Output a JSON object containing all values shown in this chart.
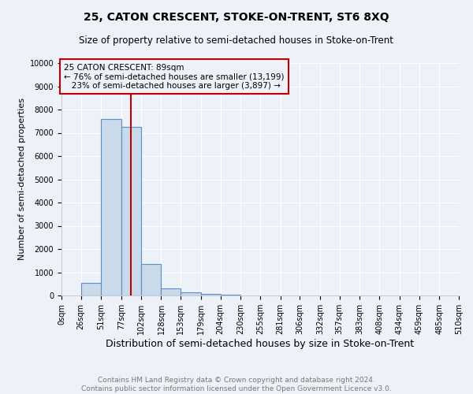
{
  "title": "25, CATON CRESCENT, STOKE-ON-TRENT, ST6 8XQ",
  "subtitle": "Size of property relative to semi-detached houses in Stoke-on-Trent",
  "xlabel": "Distribution of semi-detached houses by size in Stoke-on-Trent",
  "ylabel": "Number of semi-detached properties",
  "bin_edges": [
    0,
    25,
    51,
    77,
    102,
    128,
    153,
    179,
    204,
    230,
    255,
    281,
    306,
    332,
    357,
    383,
    408,
    434,
    459,
    485,
    510
  ],
  "bar_heights": [
    0,
    550,
    7600,
    7250,
    1350,
    310,
    135,
    80,
    50,
    0,
    0,
    0,
    0,
    0,
    0,
    0,
    0,
    0,
    0,
    0
  ],
  "bar_color": "#c9daea",
  "bar_edge_color": "#5b8fc9",
  "property_size": 89,
  "property_line_color": "#c00000",
  "annotation_line1": "25 CATON CRESCENT: 89sqm",
  "annotation_line2": "← 76% of semi-detached houses are smaller (13,199)",
  "annotation_line3": "   23% of semi-detached houses are larger (3,897) →",
  "annotation_box_color": "#c00000",
  "ylim": [
    0,
    10000
  ],
  "tick_labels": [
    "0sqm",
    "26sqm",
    "51sqm",
    "77sqm",
    "102sqm",
    "128sqm",
    "153sqm",
    "179sqm",
    "204sqm",
    "230sqm",
    "255sqm",
    "281sqm",
    "306sqm",
    "332sqm",
    "357sqm",
    "383sqm",
    "408sqm",
    "434sqm",
    "459sqm",
    "485sqm",
    "510sqm"
  ],
  "yticks": [
    0,
    1000,
    2000,
    3000,
    4000,
    5000,
    6000,
    7000,
    8000,
    9000,
    10000
  ],
  "footer": "Contains HM Land Registry data © Crown copyright and database right 2024.\nContains public sector information licensed under the Open Government Licence v3.0.",
  "background_color": "#edf2f9",
  "grid_color": "#ffffff",
  "title_fontsize": 10,
  "subtitle_fontsize": 8.5,
  "xlabel_fontsize": 9,
  "ylabel_fontsize": 8,
  "tick_fontsize": 7,
  "footer_fontsize": 6.5,
  "annotation_fontsize": 7.5
}
